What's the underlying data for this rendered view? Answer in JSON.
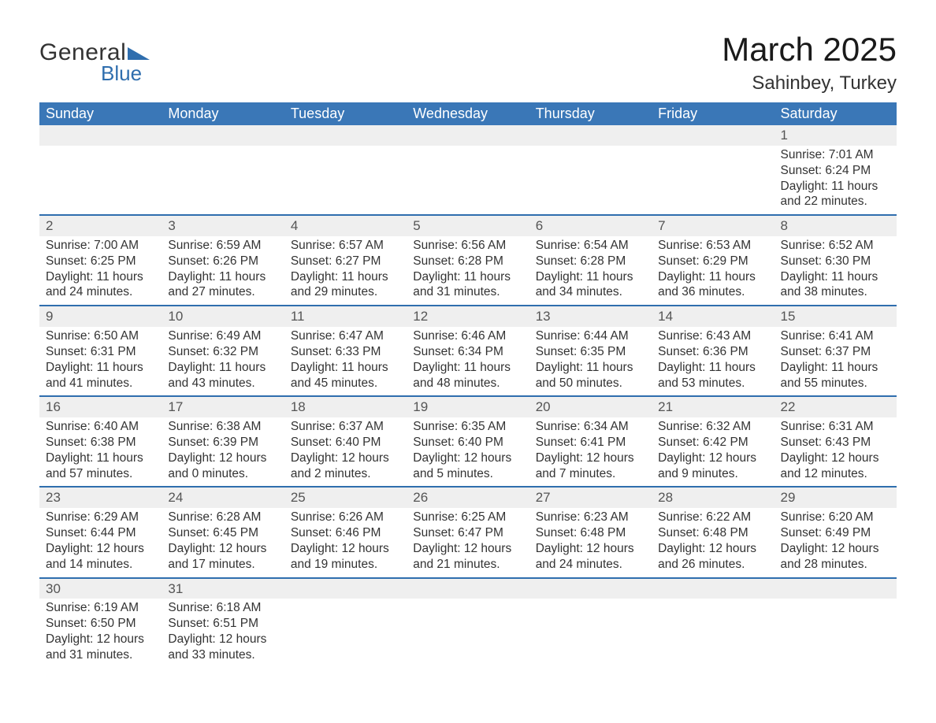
{
  "brand": {
    "general": "General",
    "blue": "Blue",
    "accent_color": "#2f6eae"
  },
  "title": "March 2025",
  "location": "Sahinbey, Turkey",
  "colors": {
    "header_bg": "#3a77b7",
    "header_text": "#ffffff",
    "daynum_bg": "#efefef",
    "row_border": "#2f6eae",
    "text": "#333333"
  },
  "weekdays": [
    "Sunday",
    "Monday",
    "Tuesday",
    "Wednesday",
    "Thursday",
    "Friday",
    "Saturday"
  ],
  "weeks": [
    {
      "nums": [
        "",
        "",
        "",
        "",
        "",
        "",
        "1"
      ],
      "cells": [
        null,
        null,
        null,
        null,
        null,
        null,
        {
          "sunrise": "Sunrise: 7:01 AM",
          "sunset": "Sunset: 6:24 PM",
          "day1": "Daylight: 11 hours",
          "day2": "and 22 minutes."
        }
      ]
    },
    {
      "nums": [
        "2",
        "3",
        "4",
        "5",
        "6",
        "7",
        "8"
      ],
      "cells": [
        {
          "sunrise": "Sunrise: 7:00 AM",
          "sunset": "Sunset: 6:25 PM",
          "day1": "Daylight: 11 hours",
          "day2": "and 24 minutes."
        },
        {
          "sunrise": "Sunrise: 6:59 AM",
          "sunset": "Sunset: 6:26 PM",
          "day1": "Daylight: 11 hours",
          "day2": "and 27 minutes."
        },
        {
          "sunrise": "Sunrise: 6:57 AM",
          "sunset": "Sunset: 6:27 PM",
          "day1": "Daylight: 11 hours",
          "day2": "and 29 minutes."
        },
        {
          "sunrise": "Sunrise: 6:56 AM",
          "sunset": "Sunset: 6:28 PM",
          "day1": "Daylight: 11 hours",
          "day2": "and 31 minutes."
        },
        {
          "sunrise": "Sunrise: 6:54 AM",
          "sunset": "Sunset: 6:28 PM",
          "day1": "Daylight: 11 hours",
          "day2": "and 34 minutes."
        },
        {
          "sunrise": "Sunrise: 6:53 AM",
          "sunset": "Sunset: 6:29 PM",
          "day1": "Daylight: 11 hours",
          "day2": "and 36 minutes."
        },
        {
          "sunrise": "Sunrise: 6:52 AM",
          "sunset": "Sunset: 6:30 PM",
          "day1": "Daylight: 11 hours",
          "day2": "and 38 minutes."
        }
      ]
    },
    {
      "nums": [
        "9",
        "10",
        "11",
        "12",
        "13",
        "14",
        "15"
      ],
      "cells": [
        {
          "sunrise": "Sunrise: 6:50 AM",
          "sunset": "Sunset: 6:31 PM",
          "day1": "Daylight: 11 hours",
          "day2": "and 41 minutes."
        },
        {
          "sunrise": "Sunrise: 6:49 AM",
          "sunset": "Sunset: 6:32 PM",
          "day1": "Daylight: 11 hours",
          "day2": "and 43 minutes."
        },
        {
          "sunrise": "Sunrise: 6:47 AM",
          "sunset": "Sunset: 6:33 PM",
          "day1": "Daylight: 11 hours",
          "day2": "and 45 minutes."
        },
        {
          "sunrise": "Sunrise: 6:46 AM",
          "sunset": "Sunset: 6:34 PM",
          "day1": "Daylight: 11 hours",
          "day2": "and 48 minutes."
        },
        {
          "sunrise": "Sunrise: 6:44 AM",
          "sunset": "Sunset: 6:35 PM",
          "day1": "Daylight: 11 hours",
          "day2": "and 50 minutes."
        },
        {
          "sunrise": "Sunrise: 6:43 AM",
          "sunset": "Sunset: 6:36 PM",
          "day1": "Daylight: 11 hours",
          "day2": "and 53 minutes."
        },
        {
          "sunrise": "Sunrise: 6:41 AM",
          "sunset": "Sunset: 6:37 PM",
          "day1": "Daylight: 11 hours",
          "day2": "and 55 minutes."
        }
      ]
    },
    {
      "nums": [
        "16",
        "17",
        "18",
        "19",
        "20",
        "21",
        "22"
      ],
      "cells": [
        {
          "sunrise": "Sunrise: 6:40 AM",
          "sunset": "Sunset: 6:38 PM",
          "day1": "Daylight: 11 hours",
          "day2": "and 57 minutes."
        },
        {
          "sunrise": "Sunrise: 6:38 AM",
          "sunset": "Sunset: 6:39 PM",
          "day1": "Daylight: 12 hours",
          "day2": "and 0 minutes."
        },
        {
          "sunrise": "Sunrise: 6:37 AM",
          "sunset": "Sunset: 6:40 PM",
          "day1": "Daylight: 12 hours",
          "day2": "and 2 minutes."
        },
        {
          "sunrise": "Sunrise: 6:35 AM",
          "sunset": "Sunset: 6:40 PM",
          "day1": "Daylight: 12 hours",
          "day2": "and 5 minutes."
        },
        {
          "sunrise": "Sunrise: 6:34 AM",
          "sunset": "Sunset: 6:41 PM",
          "day1": "Daylight: 12 hours",
          "day2": "and 7 minutes."
        },
        {
          "sunrise": "Sunrise: 6:32 AM",
          "sunset": "Sunset: 6:42 PM",
          "day1": "Daylight: 12 hours",
          "day2": "and 9 minutes."
        },
        {
          "sunrise": "Sunrise: 6:31 AM",
          "sunset": "Sunset: 6:43 PM",
          "day1": "Daylight: 12 hours",
          "day2": "and 12 minutes."
        }
      ]
    },
    {
      "nums": [
        "23",
        "24",
        "25",
        "26",
        "27",
        "28",
        "29"
      ],
      "cells": [
        {
          "sunrise": "Sunrise: 6:29 AM",
          "sunset": "Sunset: 6:44 PM",
          "day1": "Daylight: 12 hours",
          "day2": "and 14 minutes."
        },
        {
          "sunrise": "Sunrise: 6:28 AM",
          "sunset": "Sunset: 6:45 PM",
          "day1": "Daylight: 12 hours",
          "day2": "and 17 minutes."
        },
        {
          "sunrise": "Sunrise: 6:26 AM",
          "sunset": "Sunset: 6:46 PM",
          "day1": "Daylight: 12 hours",
          "day2": "and 19 minutes."
        },
        {
          "sunrise": "Sunrise: 6:25 AM",
          "sunset": "Sunset: 6:47 PM",
          "day1": "Daylight: 12 hours",
          "day2": "and 21 minutes."
        },
        {
          "sunrise": "Sunrise: 6:23 AM",
          "sunset": "Sunset: 6:48 PM",
          "day1": "Daylight: 12 hours",
          "day2": "and 24 minutes."
        },
        {
          "sunrise": "Sunrise: 6:22 AM",
          "sunset": "Sunset: 6:48 PM",
          "day1": "Daylight: 12 hours",
          "day2": "and 26 minutes."
        },
        {
          "sunrise": "Sunrise: 6:20 AM",
          "sunset": "Sunset: 6:49 PM",
          "day1": "Daylight: 12 hours",
          "day2": "and 28 minutes."
        }
      ]
    },
    {
      "nums": [
        "30",
        "31",
        "",
        "",
        "",
        "",
        ""
      ],
      "cells": [
        {
          "sunrise": "Sunrise: 6:19 AM",
          "sunset": "Sunset: 6:50 PM",
          "day1": "Daylight: 12 hours",
          "day2": "and 31 minutes."
        },
        {
          "sunrise": "Sunrise: 6:18 AM",
          "sunset": "Sunset: 6:51 PM",
          "day1": "Daylight: 12 hours",
          "day2": "and 33 minutes."
        },
        null,
        null,
        null,
        null,
        null
      ]
    }
  ]
}
